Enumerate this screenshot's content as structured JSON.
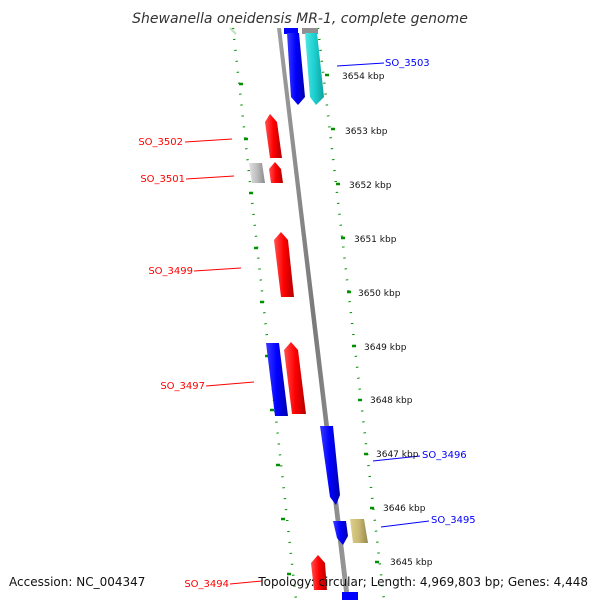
{
  "title": "Shewanella oneidensis MR-1, complete genome",
  "accession_text": "Accession: NC_004347",
  "summary_text": "Topology: circular; Length: 4,969,803 bp; Genes: 4,448",
  "colors": {
    "forward": "#ff0000",
    "reverse": "#0000ff",
    "cyan": "#1ccfcf",
    "gray": "#b8b8b8",
    "olive": "#c8b870",
    "backbone": "#808080",
    "tick": "#009000"
  },
  "ruler_labels": [
    "3654 kbp",
    "3653 kbp",
    "3652 kbp",
    "3651 kbp",
    "3650 kbp",
    "3649 kbp",
    "3648 kbp",
    "3647 kbp",
    "3646 kbp",
    "3645 kbp"
  ],
  "gene_labels": [
    {
      "name": "SO_3503",
      "strand": "reverse"
    },
    {
      "name": "SO_3502",
      "strand": "forward"
    },
    {
      "name": "SO_3501",
      "strand": "forward"
    },
    {
      "name": "SO_3499",
      "strand": "forward"
    },
    {
      "name": "SO_3497",
      "strand": "forward"
    },
    {
      "name": "SO_3496",
      "strand": "reverse"
    },
    {
      "name": "SO_3495",
      "strand": "reverse"
    },
    {
      "name": "SO_3494",
      "strand": "forward"
    }
  ]
}
